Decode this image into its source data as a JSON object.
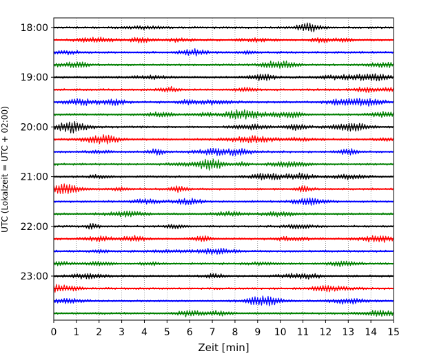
{
  "chart_data": {
    "type": "line",
    "title": "",
    "xlabel": "Zeit  [min]",
    "ylabel": "UTC (Lokalzeit = UTC + 02:00)",
    "xlim": [
      0,
      15
    ],
    "x_ticks": [
      "0",
      "1",
      "2",
      "3",
      "4",
      "5",
      "6",
      "7",
      "8",
      "9",
      "10",
      "11",
      "12",
      "13",
      "14",
      "15"
    ],
    "y_tick_labels": [
      "18:00",
      "19:00",
      "20:00",
      "21:00",
      "22:00",
      "23:00"
    ],
    "grid": "vertical dotted",
    "legend": "none",
    "trace_interval_minutes": 15,
    "trace_colors": [
      "#000000",
      "#ff0000",
      "#0000ff",
      "#008000"
    ],
    "series": [
      {
        "start": "18:00",
        "color": "#000000",
        "end_minute": 15
      },
      {
        "start": "18:15",
        "color": "#ff0000",
        "end_minute": 15
      },
      {
        "start": "18:30",
        "color": "#0000ff",
        "end_minute": 15
      },
      {
        "start": "18:45",
        "color": "#008000",
        "end_minute": 15
      },
      {
        "start": "19:00",
        "color": "#000000",
        "end_minute": 15
      },
      {
        "start": "19:15",
        "color": "#ff0000",
        "end_minute": 15
      },
      {
        "start": "19:30",
        "color": "#0000ff",
        "end_minute": 15
      },
      {
        "start": "19:45",
        "color": "#008000",
        "end_minute": 15
      },
      {
        "start": "20:00",
        "color": "#000000",
        "end_minute": 15
      },
      {
        "start": "20:15",
        "color": "#ff0000",
        "end_minute": 15
      },
      {
        "start": "20:30",
        "color": "#0000ff",
        "end_minute": 15
      },
      {
        "start": "20:45",
        "color": "#008000",
        "end_minute": 15
      },
      {
        "start": "21:00",
        "color": "#000000",
        "end_minute": 15
      },
      {
        "start": "21:15",
        "color": "#ff0000",
        "end_minute": 15
      },
      {
        "start": "21:30",
        "color": "#0000ff",
        "end_minute": 15
      },
      {
        "start": "21:45",
        "color": "#008000",
        "end_minute": 15
      },
      {
        "start": "22:00",
        "color": "#000000",
        "end_minute": 15
      },
      {
        "start": "22:15",
        "color": "#ff0000",
        "end_minute": 15
      },
      {
        "start": "22:30",
        "color": "#0000ff",
        "end_minute": 15
      },
      {
        "start": "22:45",
        "color": "#008000",
        "end_minute": 15
      },
      {
        "start": "23:00",
        "color": "#000000",
        "end_minute": 15
      },
      {
        "start": "23:15",
        "color": "#ff0000",
        "end_minute": 15
      },
      {
        "start": "23:30",
        "color": "#0000ff",
        "end_minute": 15
      },
      {
        "start": "23:45",
        "color": "#008000",
        "end_minute": 15
      }
    ]
  }
}
